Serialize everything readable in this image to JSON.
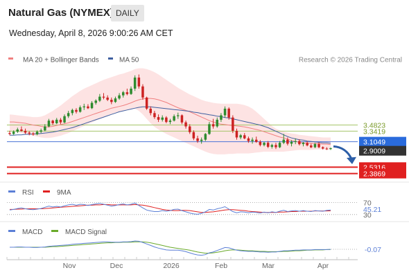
{
  "header": {
    "title": "Natural Gas (NYMEX)",
    "timeframe": "DAILY",
    "date": "Wednesday, April 8, 2026 9:00:26 AM CET"
  },
  "legend": {
    "ma20": "MA 20 + Bollinger Bands",
    "ma50": "MA 50",
    "credit": "Research © 2026 Trading Central",
    "ma20_color": "#f08080",
    "ma50_color": "#3e5fa0"
  },
  "chart_data": [
    {
      "type": "candlestick",
      "name": "price",
      "x_labels": [
        "Nov",
        "Dec",
        "2026",
        "Feb",
        "Mar",
        "Apr"
      ],
      "ylim": [
        2.35,
        4.8
      ],
      "candles": [
        [
          3.3,
          3.35,
          3.25,
          3.28
        ],
        [
          3.28,
          3.36,
          3.26,
          3.33
        ],
        [
          3.33,
          3.42,
          3.3,
          3.38
        ],
        [
          3.38,
          3.45,
          3.33,
          3.35
        ],
        [
          3.35,
          3.4,
          3.28,
          3.31
        ],
        [
          3.31,
          3.34,
          3.25,
          3.29
        ],
        [
          3.29,
          3.32,
          3.24,
          3.27
        ],
        [
          3.27,
          3.36,
          3.25,
          3.33
        ],
        [
          3.33,
          3.4,
          3.3,
          3.36
        ],
        [
          3.36,
          3.5,
          3.34,
          3.45
        ],
        [
          3.45,
          3.62,
          3.43,
          3.58
        ],
        [
          3.58,
          3.6,
          3.48,
          3.52
        ],
        [
          3.52,
          3.64,
          3.5,
          3.6
        ],
        [
          3.6,
          3.64,
          3.5,
          3.54
        ],
        [
          3.54,
          3.72,
          3.52,
          3.68
        ],
        [
          3.68,
          3.8,
          3.64,
          3.75
        ],
        [
          3.75,
          3.85,
          3.7,
          3.82
        ],
        [
          3.82,
          3.86,
          3.74,
          3.78
        ],
        [
          3.78,
          3.92,
          3.76,
          3.88
        ],
        [
          3.88,
          3.96,
          3.82,
          3.9
        ],
        [
          3.9,
          3.95,
          3.84,
          3.86
        ],
        [
          3.86,
          4.02,
          3.84,
          3.98
        ],
        [
          3.98,
          4.06,
          3.94,
          4.03
        ],
        [
          4.03,
          4.18,
          4.0,
          4.12
        ],
        [
          4.12,
          4.2,
          4.06,
          4.1
        ],
        [
          4.1,
          4.15,
          4.02,
          4.05
        ],
        [
          4.05,
          4.1,
          3.95,
          4.0
        ],
        [
          4.0,
          4.12,
          3.98,
          4.08
        ],
        [
          4.08,
          4.2,
          4.05,
          4.15
        ],
        [
          4.15,
          4.25,
          4.1,
          4.22
        ],
        [
          4.22,
          4.3,
          4.15,
          4.18
        ],
        [
          4.18,
          4.35,
          4.16,
          4.3
        ],
        [
          4.3,
          4.6,
          4.25,
          4.55
        ],
        [
          4.55,
          4.62,
          4.3,
          4.35
        ],
        [
          4.35,
          4.4,
          4.05,
          4.1
        ],
        [
          4.1,
          4.12,
          3.82,
          3.85
        ],
        [
          3.85,
          3.9,
          3.7,
          3.75
        ],
        [
          3.75,
          3.8,
          3.62,
          3.66
        ],
        [
          3.66,
          3.72,
          3.55,
          3.6
        ],
        [
          3.6,
          3.7,
          3.56,
          3.65
        ],
        [
          3.65,
          3.68,
          3.52,
          3.55
        ],
        [
          3.55,
          3.62,
          3.5,
          3.58
        ],
        [
          3.58,
          3.72,
          3.56,
          3.68
        ],
        [
          3.68,
          3.76,
          3.62,
          3.7
        ],
        [
          3.7,
          3.72,
          3.5,
          3.54
        ],
        [
          3.54,
          3.58,
          3.4,
          3.45
        ],
        [
          3.45,
          3.5,
          3.28,
          3.32
        ],
        [
          3.32,
          3.36,
          3.14,
          3.18
        ],
        [
          3.18,
          3.24,
          3.08,
          3.12
        ],
        [
          3.12,
          3.2,
          3.06,
          3.15
        ],
        [
          3.15,
          3.3,
          3.12,
          3.28
        ],
        [
          3.28,
          3.55,
          3.26,
          3.5
        ],
        [
          3.5,
          3.62,
          3.4,
          3.45
        ],
        [
          3.45,
          3.65,
          3.42,
          3.6
        ],
        [
          3.6,
          3.75,
          3.55,
          3.7
        ],
        [
          3.7,
          3.9,
          3.65,
          3.85
        ],
        [
          3.85,
          3.88,
          3.6,
          3.65
        ],
        [
          3.65,
          3.7,
          3.3,
          3.35
        ],
        [
          3.35,
          3.4,
          3.15,
          3.2
        ],
        [
          3.2,
          3.28,
          3.16,
          3.25
        ],
        [
          3.25,
          3.3,
          3.16,
          3.18
        ],
        [
          3.18,
          3.22,
          3.08,
          3.12
        ],
        [
          3.12,
          3.2,
          3.06,
          3.15
        ],
        [
          3.15,
          3.22,
          3.08,
          3.1
        ],
        [
          3.1,
          3.14,
          3.0,
          3.03
        ],
        [
          3.03,
          3.1,
          3.0,
          3.08
        ],
        [
          3.08,
          3.12,
          2.96,
          2.99
        ],
        [
          2.99,
          3.06,
          2.95,
          3.03
        ],
        [
          3.03,
          3.08,
          2.94,
          2.98
        ],
        [
          2.98,
          3.12,
          2.96,
          3.08
        ],
        [
          3.08,
          3.28,
          3.05,
          3.15
        ],
        [
          3.15,
          3.2,
          3.02,
          3.06
        ],
        [
          3.06,
          3.14,
          3.0,
          3.1
        ],
        [
          3.1,
          3.18,
          3.05,
          3.12
        ],
        [
          3.12,
          3.16,
          3.02,
          3.05
        ],
        [
          3.05,
          3.1,
          3.0,
          3.08
        ],
        [
          3.08,
          3.12,
          3.0,
          3.02
        ],
        [
          3.02,
          3.06,
          2.96,
          2.98
        ],
        [
          2.98,
          3.08,
          2.96,
          3.05
        ],
        [
          3.05,
          3.1,
          2.96,
          2.98
        ],
        [
          2.98,
          3.0,
          2.93,
          2.95
        ],
        [
          2.95,
          2.98,
          2.92,
          2.94
        ],
        [
          2.94,
          2.97,
          2.92,
          2.96
        ]
      ],
      "ma20": [
        3.55,
        3.55,
        3.54,
        3.53,
        3.52,
        3.5,
        3.48,
        3.47,
        3.45,
        3.44,
        3.44,
        3.45,
        3.47,
        3.49,
        3.51,
        3.53,
        3.56,
        3.59,
        3.62,
        3.65,
        3.68,
        3.71,
        3.74,
        3.77,
        3.8,
        3.83,
        3.86,
        3.88,
        3.9,
        3.92,
        3.95,
        3.98,
        4.02,
        4.05,
        4.07,
        4.08,
        4.08,
        4.07,
        4.05,
        4.02,
        3.99,
        3.95,
        3.91,
        3.87,
        3.84,
        3.81,
        3.78,
        3.74,
        3.7,
        3.66,
        3.62,
        3.58,
        3.55,
        3.52,
        3.5,
        3.49,
        3.48,
        3.47,
        3.46,
        3.45,
        3.44,
        3.42,
        3.4,
        3.38,
        3.36,
        3.33,
        3.3,
        3.27,
        3.24,
        3.21,
        3.19,
        3.16,
        3.13,
        3.11,
        3.09,
        3.08,
        3.07,
        3.07,
        3.06,
        3.06,
        3.05,
        3.05,
        3.04
      ],
      "bb_upper": [
        3.72,
        3.71,
        3.7,
        3.69,
        3.68,
        3.67,
        3.66,
        3.66,
        3.67,
        3.7,
        3.75,
        3.8,
        3.86,
        3.92,
        3.99,
        4.06,
        4.13,
        4.19,
        4.25,
        4.3,
        4.34,
        4.38,
        4.42,
        4.46,
        4.5,
        4.53,
        4.56,
        4.59,
        4.62,
        4.64,
        4.67,
        4.7,
        4.74,
        4.76,
        4.76,
        4.74,
        4.71,
        4.67,
        4.62,
        4.56,
        4.5,
        4.44,
        4.38,
        4.32,
        4.27,
        4.22,
        4.17,
        4.13,
        4.09,
        4.05,
        4.02,
        4.0,
        3.98,
        3.97,
        3.96,
        3.96,
        3.96,
        3.96,
        3.96,
        3.95,
        3.93,
        3.9,
        3.85,
        3.78,
        3.7,
        3.62,
        3.54,
        3.46,
        3.4,
        3.36,
        3.33,
        3.31,
        3.29,
        3.28,
        3.26,
        3.25,
        3.24,
        3.23,
        3.22,
        3.21,
        3.2,
        3.2,
        3.2
      ],
      "bb_lower": [
        3.35,
        3.34,
        3.32,
        3.3,
        3.28,
        3.26,
        3.24,
        3.22,
        3.2,
        3.19,
        3.19,
        3.2,
        3.22,
        3.24,
        3.27,
        3.3,
        3.34,
        3.38,
        3.42,
        3.46,
        3.5,
        3.54,
        3.58,
        3.62,
        3.66,
        3.7,
        3.73,
        3.76,
        3.78,
        3.8,
        3.82,
        3.84,
        3.85,
        3.8,
        3.72,
        3.62,
        3.52,
        3.44,
        3.38,
        3.33,
        3.28,
        3.24,
        3.2,
        3.16,
        3.12,
        3.08,
        3.04,
        3.0,
        2.96,
        2.92,
        2.88,
        2.85,
        2.83,
        2.82,
        2.82,
        2.82,
        2.83,
        2.83,
        2.84,
        2.84,
        2.84,
        2.84,
        2.85,
        2.86,
        2.87,
        2.88,
        2.88,
        2.88,
        2.88,
        2.88,
        2.88,
        2.89,
        2.9,
        2.91,
        2.92,
        2.92,
        2.92,
        2.92,
        2.93,
        2.93,
        2.93,
        2.93,
        2.92
      ],
      "ma50": [
        3.25,
        3.25,
        3.26,
        3.26,
        3.27,
        3.27,
        3.28,
        3.28,
        3.29,
        3.3,
        3.31,
        3.32,
        3.34,
        3.36,
        3.38,
        3.4,
        3.42,
        3.45,
        3.48,
        3.51,
        3.54,
        3.57,
        3.6,
        3.63,
        3.66,
        3.69,
        3.72,
        3.75,
        3.78,
        3.8,
        3.82,
        3.84,
        3.86,
        3.88,
        3.89,
        3.89,
        3.89,
        3.88,
        3.87,
        3.86,
        3.85,
        3.84,
        3.83,
        3.82,
        3.81,
        3.8,
        3.79,
        3.77,
        3.76,
        3.74,
        3.73,
        3.71,
        3.7,
        3.68,
        3.67,
        3.65,
        3.64,
        3.62,
        3.6,
        3.58,
        3.56,
        3.54,
        3.52,
        3.5,
        3.48,
        3.45,
        3.42,
        3.38,
        3.34,
        3.3,
        3.26,
        3.22,
        3.19,
        3.17,
        3.15,
        3.14,
        3.12,
        3.11,
        3.1,
        3.09,
        3.08,
        3.08,
        3.07
      ],
      "levels": [
        {
          "value": 3.4823,
          "label": "3.4823",
          "color": "#a5c56a",
          "label_bg": "",
          "label_color": "#7a9a2a"
        },
        {
          "value": 3.3419,
          "label": "3.3419",
          "color": "#a5c56a",
          "label_bg": "",
          "label_color": "#7a9a2a"
        },
        {
          "value": 3.1049,
          "label": "3.1049",
          "color": "#4a73d6",
          "label_bg": "#2a6bdc",
          "label_color": "#ffffff"
        },
        {
          "value": 2.9009,
          "label": "2.9009",
          "color": "",
          "label_bg": "#333333",
          "label_color": "#ffffff"
        },
        {
          "value": 2.5316,
          "label": "2.5316",
          "color": "#e02020",
          "label_bg": "#e02020",
          "label_color": "#ffffff"
        },
        {
          "value": 2.3869,
          "label": "2.3869",
          "color": "#e02020",
          "label_bg": "#e02020",
          "label_color": "#ffffff"
        }
      ],
      "colors": {
        "up": "#2e8b2e",
        "down": "#cc2222",
        "bb_fill": "#fde3e3"
      }
    },
    {
      "type": "line",
      "name": "rsi",
      "legend": [
        {
          "name": "RSI",
          "color": "#5b7fd6"
        },
        {
          "name": "9MA",
          "color": "#e02020"
        }
      ],
      "ylim": [
        25,
        80
      ],
      "levels": [
        70,
        30
      ],
      "level_labels": [
        "70",
        "30"
      ],
      "last_label": "45.21",
      "rsi": [
        45,
        47,
        50,
        52,
        49,
        47,
        46,
        48,
        50,
        54,
        58,
        55,
        57,
        55,
        59,
        62,
        64,
        61,
        64,
        63,
        60,
        63,
        65,
        67,
        64,
        61,
        58,
        60,
        63,
        65,
        62,
        64,
        68,
        60,
        52,
        45,
        42,
        40,
        40,
        43,
        41,
        43,
        47,
        48,
        43,
        39,
        35,
        32,
        31,
        34,
        39,
        47,
        45,
        49,
        52,
        56,
        48,
        40,
        36,
        39,
        38,
        36,
        38,
        37,
        35,
        38,
        36,
        39,
        37,
        41,
        44,
        40,
        42,
        43,
        41,
        43,
        41,
        40,
        43,
        42,
        41,
        44,
        45.21
      ],
      "ma9": [
        47,
        47,
        48,
        48,
        49,
        49,
        49,
        49,
        49,
        50,
        51,
        52,
        53,
        54,
        55,
        56,
        57,
        58,
        59,
        60,
        61,
        61,
        62,
        62,
        63,
        63,
        62,
        62,
        62,
        62,
        62,
        62,
        63,
        62,
        61,
        59,
        56,
        53,
        50,
        47,
        45,
        44,
        43,
        43,
        44,
        44,
        43,
        41,
        39,
        37,
        37,
        38,
        39,
        41,
        43,
        45,
        46,
        46,
        45,
        44,
        43,
        41,
        40,
        39,
        38,
        37,
        37,
        37,
        37,
        38,
        38,
        39,
        40,
        40,
        41,
        41,
        41,
        41,
        42,
        42,
        42,
        42,
        42.5
      ]
    },
    {
      "type": "line",
      "name": "macd",
      "legend": [
        {
          "name": "MACD",
          "color": "#5b7fd6"
        },
        {
          "name": "MACD Signal",
          "color": "#6aaa2a"
        }
      ],
      "ylim": [
        -0.35,
        0.35
      ],
      "last_label": "-0.07",
      "macd": [
        0.0,
        0.0,
        0.01,
        0.01,
        0.0,
        0.0,
        -0.01,
        -0.01,
        0.0,
        0.01,
        0.03,
        0.04,
        0.05,
        0.06,
        0.07,
        0.08,
        0.1,
        0.11,
        0.12,
        0.13,
        0.14,
        0.15,
        0.16,
        0.17,
        0.18,
        0.18,
        0.17,
        0.17,
        0.17,
        0.18,
        0.18,
        0.19,
        0.21,
        0.2,
        0.16,
        0.11,
        0.06,
        0.01,
        -0.03,
        -0.06,
        -0.09,
        -0.1,
        -0.1,
        -0.1,
        -0.12,
        -0.15,
        -0.19,
        -0.23,
        -0.26,
        -0.27,
        -0.25,
        -0.19,
        -0.16,
        -0.11,
        -0.06,
        -0.01,
        -0.02,
        -0.06,
        -0.1,
        -0.12,
        -0.13,
        -0.14,
        -0.14,
        -0.15,
        -0.16,
        -0.16,
        -0.17,
        -0.16,
        -0.16,
        -0.14,
        -0.12,
        -0.12,
        -0.11,
        -0.1,
        -0.1,
        -0.09,
        -0.09,
        -0.09,
        -0.08,
        -0.08,
        -0.08,
        -0.08,
        -0.07
      ],
      "signal": [
        0.0,
        0.0,
        0.0,
        0.0,
        0.0,
        0.0,
        0.0,
        0.0,
        0.0,
        0.0,
        0.01,
        0.02,
        0.02,
        0.03,
        0.04,
        0.05,
        0.06,
        0.07,
        0.08,
        0.09,
        0.1,
        0.11,
        0.12,
        0.13,
        0.14,
        0.15,
        0.15,
        0.16,
        0.16,
        0.17,
        0.17,
        0.17,
        0.18,
        0.18,
        0.18,
        0.17,
        0.15,
        0.12,
        0.09,
        0.06,
        0.03,
        0.0,
        -0.02,
        -0.04,
        -0.06,
        -0.08,
        -0.1,
        -0.13,
        -0.16,
        -0.18,
        -0.2,
        -0.2,
        -0.19,
        -0.17,
        -0.15,
        -0.12,
        -0.1,
        -0.09,
        -0.09,
        -0.1,
        -0.11,
        -0.12,
        -0.12,
        -0.13,
        -0.14,
        -0.14,
        -0.15,
        -0.15,
        -0.15,
        -0.15,
        -0.14,
        -0.14,
        -0.13,
        -0.12,
        -0.12,
        -0.11,
        -0.1,
        -0.1,
        -0.09,
        -0.09,
        -0.09,
        -0.08,
        -0.08
      ]
    }
  ]
}
